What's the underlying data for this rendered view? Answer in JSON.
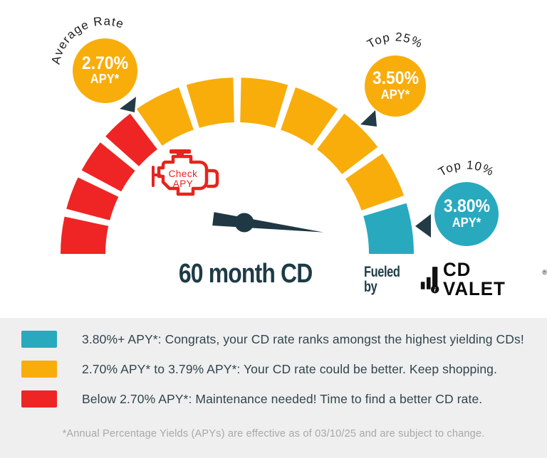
{
  "chart_data": {
    "type": "gauge",
    "title": "60 month CD",
    "angle_span_deg": 180,
    "zones": [
      {
        "name": "below-average",
        "color": "#ee2524",
        "segments": 4,
        "start_deg": 180,
        "end_deg": 126,
        "range_label": "Below 2.70% APY*"
      },
      {
        "name": "average-to-top",
        "color": "#f8ad0b",
        "segments": 6,
        "start_deg": 126,
        "end_deg": 18,
        "range_label": "2.70% APY* to 3.79% APY*"
      },
      {
        "name": "top-tier",
        "color": "#28a9be",
        "segments": 1,
        "start_deg": 18,
        "end_deg": 0,
        "range_label": "3.80%+ APY*"
      }
    ],
    "needle": {
      "angle_deg": -7
    },
    "markers": [
      {
        "id": "average",
        "label": "Average Rate",
        "rate": "2.70%",
        "sub": "APY*",
        "color": "#f8ad0b"
      },
      {
        "id": "top25",
        "label": "Top 25%",
        "rate": "3.50%",
        "sub": "APY*",
        "color": "#f8ad0b"
      },
      {
        "id": "top10",
        "label": "Top 10%",
        "rate": "3.80%",
        "sub": "APY*",
        "color": "#28a9be"
      }
    ],
    "warning_light": {
      "line1": "Check",
      "line2": "APY"
    }
  },
  "title": "60 month CD",
  "branding": {
    "fueled_by": "Fueled by",
    "name": "CD VALET",
    "registered": "®"
  },
  "legend": {
    "items": [
      {
        "color": "#28a9be",
        "text": "3.80%+ APY*: Congrats, your CD rate ranks amongst the highest yielding CDs!"
      },
      {
        "color": "#f8ad0b",
        "text": "2.70% APY* to 3.79% APY*: Your CD rate could be better. Keep shopping."
      },
      {
        "color": "#ee2524",
        "text": "Below 2.70% APY*: Maintenance needed! Time to find a better CD rate."
      }
    ]
  },
  "footer": {
    "disclaimer": "*Annual Percentage Yields (APYs) are effective as of 03/10/25 and are subject to change."
  },
  "colors": {
    "teal": "#28a9be",
    "yellow": "#f8ad0b",
    "red": "#ee2524",
    "ink": "#1e3b47",
    "muted": "#a8a8a8",
    "band_bg": "#efefef"
  }
}
